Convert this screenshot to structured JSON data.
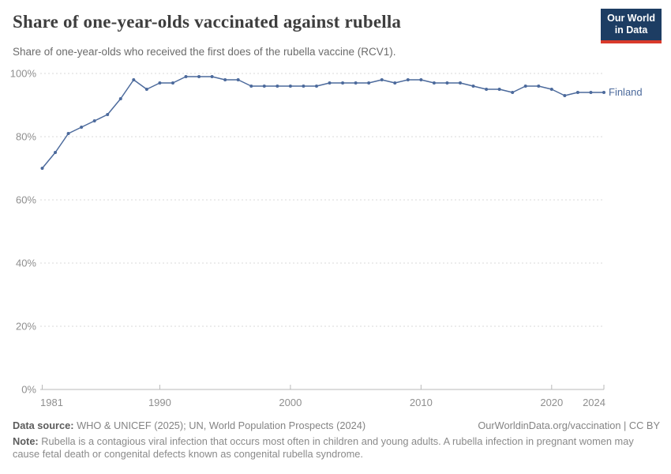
{
  "header": {
    "title": "Share of one-year-olds vaccinated against rubella",
    "subtitle": "Share of one-year-olds who received the first does of the rubella vaccine (RCV1).",
    "logo": {
      "line1": "Our World",
      "line2": "in Data"
    }
  },
  "chart_data": {
    "type": "line",
    "title": "Share of one-year-olds vaccinated against rubella",
    "xlabel": "",
    "ylabel": "",
    "x": [
      1981,
      1982,
      1983,
      1984,
      1985,
      1986,
      1987,
      1988,
      1989,
      1990,
      1991,
      1992,
      1993,
      1994,
      1995,
      1996,
      1997,
      1998,
      1999,
      2000,
      2001,
      2002,
      2003,
      2004,
      2005,
      2006,
      2007,
      2008,
      2009,
      2010,
      2011,
      2012,
      2013,
      2014,
      2015,
      2016,
      2017,
      2018,
      2019,
      2020,
      2021,
      2022,
      2023,
      2024
    ],
    "series": [
      {
        "name": "Finland",
        "values": [
          70,
          75,
          81,
          83,
          85,
          87,
          92,
          98,
          95,
          97,
          97,
          99,
          99,
          99,
          98,
          98,
          96,
          96,
          96,
          96,
          96,
          96,
          97,
          97,
          97,
          97,
          98,
          97,
          98,
          98,
          97,
          97,
          97,
          96,
          95,
          95,
          94,
          96,
          96,
          95,
          93,
          94,
          94,
          94
        ]
      }
    ],
    "ylim": [
      0,
      100
    ],
    "yticks": [
      0,
      20,
      40,
      60,
      80,
      100
    ],
    "ytick_suffix": "%",
    "xticks": [
      1981,
      1990,
      2000,
      2010,
      2020,
      2024
    ],
    "grid": "horizontal-dashed",
    "legend_position": "end-of-line"
  },
  "footer": {
    "datasource_label": "Data source:",
    "datasource_text": " WHO & UNICEF (2025); UN, World Population Prospects (2024)",
    "link": "OurWorldinData.org/vaccination | CC BY",
    "note_label": "Note:",
    "note_text": " Rubella is a contagious viral infection that occurs most often in children and young adults. A rubella infection in pregnant women may cause fetal death or congenital defects known as congenital rubella syndrome."
  },
  "colors": {
    "line": "#4c6a9c",
    "entity_label": "#4c6a9c",
    "logo_background": "#1d3d63",
    "logo_accent": "#d93a2b",
    "title": "#3e3e3e",
    "subtitle": "#6b6b6b",
    "axis_text": "#8f8f8f",
    "grid": "#dadada",
    "footer_text": "#848484"
  }
}
